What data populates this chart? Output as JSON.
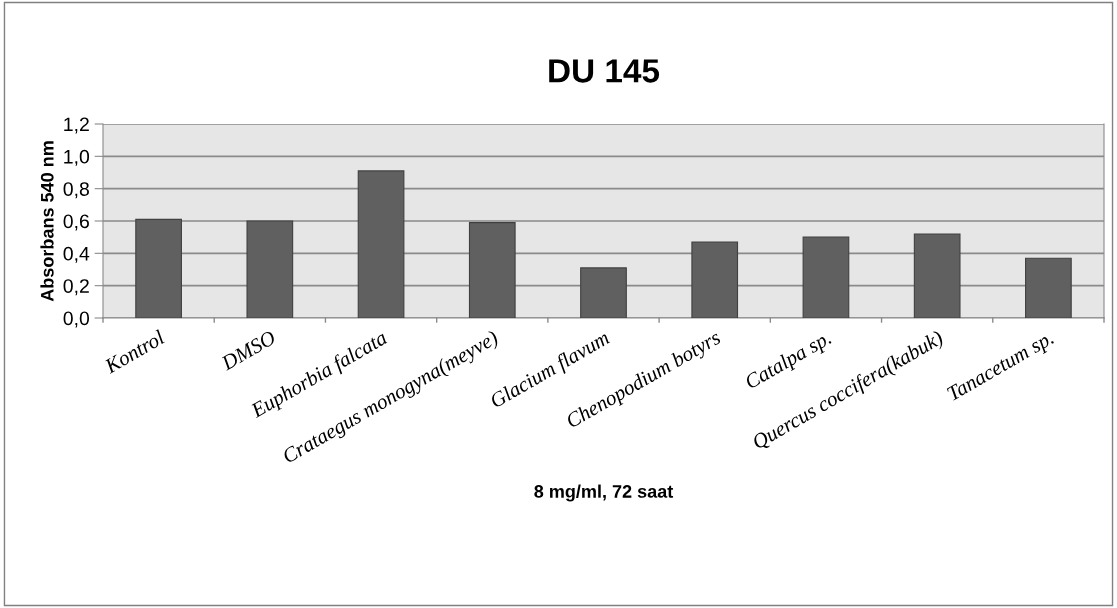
{
  "chart_data": {
    "type": "bar",
    "title": "DU 145",
    "xlabel": "8 mg/ml, 72 saat",
    "ylabel": "Absorbans 540 nm",
    "categories": [
      "Kontrol",
      "DMSO",
      "Euphorbia falcata",
      "Crataegus monogyna(meyve)",
      "Glacium flavum",
      "Chenopodium botyrs",
      "Catalpa sp.",
      "Quercus coccifera(kabuk)",
      "Tanacetum sp."
    ],
    "values": [
      0.61,
      0.6,
      0.91,
      0.59,
      0.31,
      0.47,
      0.5,
      0.52,
      0.37
    ],
    "color": "#606060",
    "ylim": [
      0,
      1.2
    ],
    "yticks": [
      {
        "value": 0,
        "label": "0,0"
      },
      {
        "value": 0.2,
        "label": "0,2"
      },
      {
        "value": 0.4,
        "label": "0,4"
      },
      {
        "value": 0.6,
        "label": "0,6"
      },
      {
        "value": 0.8,
        "label": "0,8"
      },
      {
        "value": 1.0,
        "label": "1,0"
      },
      {
        "value": 1.2,
        "label": "1,2"
      }
    ],
    "grid": "y",
    "legend": false
  }
}
